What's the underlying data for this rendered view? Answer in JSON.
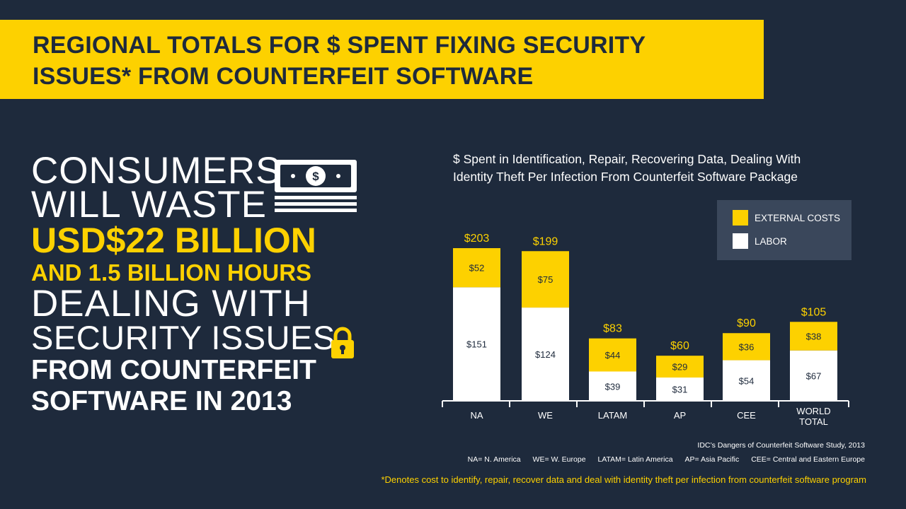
{
  "banner": {
    "line1": "REGIONAL TOTALS FOR $ SPENT FIXING SECURITY",
    "line2": "ISSUES* FROM COUNTERFEIT SOFTWARE"
  },
  "headline": {
    "line1": "CONSUMERS",
    "line2": "WILL WASTE",
    "line3": "USD$22 BILLION",
    "line4": "AND 1.5 BILLION HOURS",
    "line5": "DEALING WITH",
    "line6": "SECURITY ISSUES",
    "line7": "FROM COUNTERFEIT",
    "line8": "SOFTWARE IN 2013"
  },
  "icons": {
    "money": "money-stack-icon",
    "lock": "lock-icon"
  },
  "colors": {
    "background": "#1e2a3c",
    "accent": "#fdd100",
    "labor": "#ffffff",
    "legend_bg": "#3a475b"
  },
  "chart_data": {
    "type": "bar",
    "stacked": true,
    "title": "$ Spent in Identification, Repair, Recovering Data, Dealing With Identity Theft Per Infection From Counterfeit Software Package",
    "title_lines": [
      "$ Spent in Identification, Repair, Recovering Data, Dealing With",
      "Identity Theft Per Infection From Counterfeit Software Package"
    ],
    "categories": [
      "NA",
      "WE",
      "LATAM",
      "AP",
      "CEE",
      "WORLD TOTAL"
    ],
    "category_lines": [
      [
        "NA"
      ],
      [
        "WE"
      ],
      [
        "LATAM"
      ],
      [
        "AP"
      ],
      [
        "CEE"
      ],
      [
        "WORLD",
        "TOTAL"
      ]
    ],
    "series": [
      {
        "name": "LABOR",
        "color": "#ffffff",
        "values": [
          151,
          124,
          39,
          31,
          54,
          67
        ],
        "labels": [
          "$151",
          "$124",
          "$39",
          "$31",
          "$54",
          "$67"
        ]
      },
      {
        "name": "EXTERNAL COSTS",
        "color": "#fdd100",
        "values": [
          52,
          75,
          44,
          29,
          36,
          38
        ],
        "labels": [
          "$52",
          "$75",
          "$44",
          "$29",
          "$36",
          "$38"
        ]
      }
    ],
    "totals": [
      203,
      199,
      83,
      60,
      90,
      105
    ],
    "total_labels": [
      "$203",
      "$199",
      "$83",
      "$60",
      "$90",
      "$105"
    ],
    "ylim": [
      0,
      210
    ],
    "legend": {
      "position": "top-right",
      "items": [
        "EXTERNAL COSTS",
        "LABOR"
      ]
    }
  },
  "footer": {
    "source": "IDC’s Dangers of Counterfeit Software Study, 2013",
    "abbreviations": [
      "NA= N. America",
      "WE= W. Europe",
      "LATAM= Latin America",
      "AP= Asia Pacific",
      "CEE= Central and Eastern Europe"
    ],
    "denotes": "*Denotes cost to identify, repair, recover data and deal with identity theft per infection from counterfeit software program"
  }
}
